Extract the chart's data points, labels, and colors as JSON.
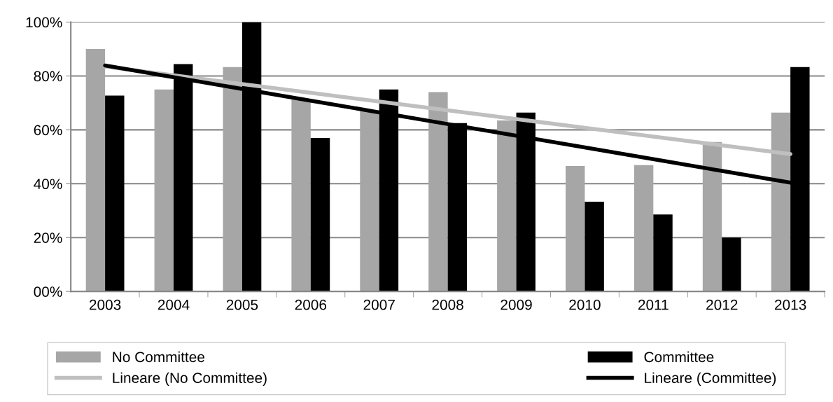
{
  "chart_data": {
    "type": "bar",
    "categories": [
      "2003",
      "2004",
      "2005",
      "2006",
      "2007",
      "2008",
      "2009",
      "2010",
      "2011",
      "2012",
      "2013"
    ],
    "series": [
      {
        "name": "No Committee",
        "color": "#a6a6a6",
        "values": [
          90,
          75,
          83.3,
          71.4,
          67,
          74,
          63.5,
          46.6,
          46.9,
          55.5,
          66.4
        ]
      },
      {
        "name": "Committee",
        "color": "#000000",
        "values": [
          72.7,
          84.4,
          100,
          57,
          75,
          62.5,
          66.4,
          33.3,
          28.6,
          20,
          83.3
        ]
      },
      {
        "name": "Lineare (No Committee)",
        "type": "line",
        "color": "#bfbfbf",
        "values": [
          83.5,
          80.25,
          77,
          73.75,
          70.5,
          67.25,
          64,
          60.75,
          57.5,
          54.25,
          51
        ]
      },
      {
        "name": "Lineare (Committee)",
        "type": "line",
        "color": "#000000",
        "values": [
          83.9,
          79.55,
          75.2,
          70.85,
          66.5,
          62.15,
          57.8,
          53.45,
          49.1,
          44.75,
          40.4
        ]
      }
    ],
    "ylim": [
      0,
      100
    ],
    "yticks": [
      {
        "value": 0,
        "label": "00%"
      },
      {
        "value": 20,
        "label": "20%"
      },
      {
        "value": 40,
        "label": "40%"
      },
      {
        "value": 60,
        "label": "60%"
      },
      {
        "value": 80,
        "label": "80%"
      },
      {
        "value": 100,
        "label": "100%"
      }
    ],
    "grid": "y",
    "legend": "bottom",
    "marker": "none"
  }
}
